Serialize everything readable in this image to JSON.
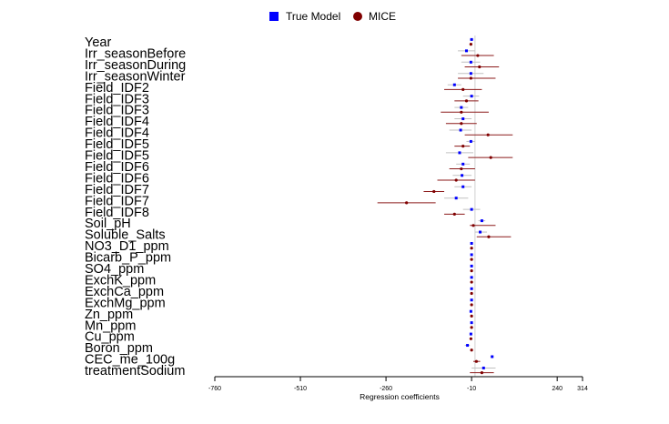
{
  "chart_data": {
    "type": "forest",
    "xlabel": "Regression coefficients",
    "xlim": [
      -760,
      314
    ],
    "xticks": [
      -760,
      -510,
      -260,
      -10,
      240,
      314
    ],
    "legend": {
      "position": "top-center",
      "entries": [
        {
          "name": "True Model",
          "color": "#0000ff",
          "marker": "square"
        },
        {
          "name": "MICE",
          "color": "#800000",
          "marker": "circle"
        }
      ]
    },
    "colors": {
      "true_model": "#0000ff",
      "mice": "#800000",
      "true_ci": "#c0c0c0",
      "mice_ci": "#8b1a1a",
      "zero_line": "#d0d0d0"
    },
    "variables": [
      {
        "name": "Year",
        "true": [
          -10,
          -15,
          -5
        ],
        "mice": [
          -12,
          -15,
          -8
        ]
      },
      {
        "name": "Irr_seasonBefore",
        "true": [
          -25,
          -50,
          0
        ],
        "mice": [
          8,
          -40,
          55
        ]
      },
      {
        "name": "Irr_seasonDuring",
        "true": [
          -12,
          -40,
          15
        ],
        "mice": [
          13,
          -30,
          70
        ]
      },
      {
        "name": "Irr_seasonWinter",
        "true": [
          -12,
          -50,
          25
        ],
        "mice": [
          -12,
          -50,
          60
        ]
      },
      {
        "name": "Field_IDF2",
        "true": [
          -60,
          -80,
          -40
        ],
        "mice": [
          -35,
          -90,
          20
        ]
      },
      {
        "name": "Field_IDF3",
        "true": [
          -10,
          -35,
          12
        ],
        "mice": [
          -25,
          -60,
          10
        ]
      },
      {
        "name": "Field_IDF3",
        "true": [
          -40,
          -60,
          -20
        ],
        "mice": [
          -40,
          -100,
          40
        ]
      },
      {
        "name": "Field_IDF4",
        "true": [
          -35,
          -60,
          -10
        ],
        "mice": [
          -40,
          -85,
          5
        ]
      },
      {
        "name": "Field_IDF4",
        "true": [
          -42,
          -75,
          -10
        ],
        "mice": [
          38,
          -30,
          110
        ]
      },
      {
        "name": "Field_IDF5",
        "true": [
          -12,
          -25,
          0
        ],
        "mice": [
          -35,
          -60,
          -15
        ]
      },
      {
        "name": "Field_IDF5",
        "true": [
          -45,
          -85,
          -5
        ],
        "mice": [
          46,
          -20,
          110
        ]
      },
      {
        "name": "Field_IDF6",
        "true": [
          -35,
          -55,
          -15
        ],
        "mice": [
          -40,
          -75,
          0
        ]
      },
      {
        "name": "Field_IDF6",
        "true": [
          -38,
          -65,
          -10
        ],
        "mice": [
          -55,
          -110,
          0
        ]
      },
      {
        "name": "Field_IDF7",
        "true": [
          -35,
          -60,
          -10
        ],
        "mice": [
          -120,
          -150,
          -90
        ]
      },
      {
        "name": "Field_IDF7",
        "true": [
          -55,
          -90,
          -20
        ],
        "mice": [
          -200,
          -285,
          -115
        ]
      },
      {
        "name": "Field_IDF8",
        "true": [
          -10,
          -35,
          15
        ],
        "mice": [
          -60,
          -90,
          -30
        ]
      },
      {
        "name": "Soil_pH",
        "true": [
          20,
          10,
          30
        ],
        "mice": [
          -5,
          -15,
          60
        ]
      },
      {
        "name": "Soluble_Salts",
        "true": [
          15,
          0,
          35
        ],
        "mice": [
          40,
          5,
          105
        ]
      },
      {
        "name": "NO3_D1_ppm",
        "true": [
          -10,
          -12,
          -8
        ],
        "mice": [
          -10,
          -12,
          -8
        ]
      },
      {
        "name": "Bicarb_P_ppm",
        "true": [
          -10,
          -12,
          -8
        ],
        "mice": [
          -10,
          -12,
          -8
        ]
      },
      {
        "name": "SO4_ppm",
        "true": [
          -10,
          -12,
          -8
        ],
        "mice": [
          -10,
          -12,
          -8
        ]
      },
      {
        "name": "ExchK_ppm",
        "true": [
          -10,
          -12,
          -8
        ],
        "mice": [
          -10,
          -12,
          -8
        ]
      },
      {
        "name": "ExchCa_ppm",
        "true": [
          -10,
          -12,
          -8
        ],
        "mice": [
          -10,
          -12,
          -8
        ]
      },
      {
        "name": "ExchMg_ppm",
        "true": [
          -10,
          -12,
          -8
        ],
        "mice": [
          -10,
          -12,
          -8
        ]
      },
      {
        "name": "Zn_ppm",
        "true": [
          -12,
          -15,
          -8
        ],
        "mice": [
          -10,
          -12,
          -8
        ]
      },
      {
        "name": "Mn_ppm",
        "true": [
          -10,
          -12,
          -8
        ],
        "mice": [
          -10,
          -12,
          -8
        ]
      },
      {
        "name": "Cu_ppm",
        "true": [
          -12,
          -15,
          -8
        ],
        "mice": [
          -12,
          -15,
          -8
        ]
      },
      {
        "name": "Boron_ppm",
        "true": [
          -22,
          -30,
          -15
        ],
        "mice": [
          -10,
          -13,
          -7
        ]
      },
      {
        "name": "CEC_me_100g",
        "true": [
          50,
          45,
          55
        ],
        "mice": [
          4,
          -5,
          15
        ]
      },
      {
        "name": "treatmentSodium",
        "true": [
          25,
          -10,
          60
        ],
        "mice": [
          20,
          -15,
          55
        ]
      }
    ]
  }
}
